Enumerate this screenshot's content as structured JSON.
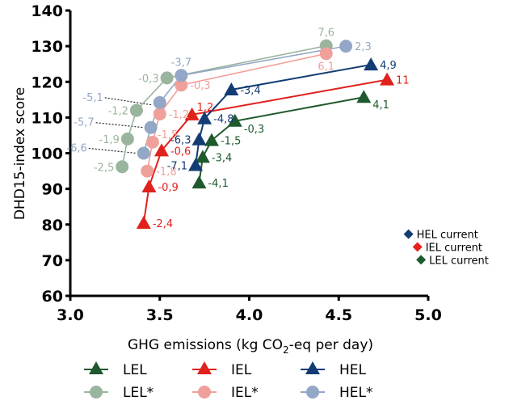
{
  "chart_data": {
    "type": "line",
    "title": "",
    "xlabel": "GHG emissions (kg CO",
    "xlabel_sub": "2",
    "xlabel_rest": "-eq per day)",
    "ylabel": "DHD15-index score",
    "xlim": [
      3.0,
      5.0
    ],
    "ylim": [
      60,
      140
    ],
    "xticks": [
      "3.0",
      "3.5",
      "4.0",
      "4.5",
      "5.0"
    ],
    "yticks": [
      "60",
      "70",
      "80",
      "90",
      "100",
      "110",
      "120",
      "130",
      "140"
    ],
    "grid": false,
    "legend_placement": "bottom",
    "series": [
      {
        "name": "LEL",
        "marker": "triangle",
        "color": "#1f5a2e",
        "points": [
          {
            "x": 3.72,
            "y": 91.7,
            "label": "-4,1",
            "pos": "right"
          },
          {
            "x": 3.74,
            "y": 98.9,
            "label": "-3,4",
            "pos": "right"
          },
          {
            "x": 3.79,
            "y": 103.6,
            "label": "-1,5",
            "pos": "right"
          },
          {
            "x": 3.92,
            "y": 109.0,
            "label": "-0,3",
            "pos": "rightbelow"
          },
          {
            "x": 4.64,
            "y": 115.7,
            "label": "4,1",
            "pos": "rightbelow"
          }
        ]
      },
      {
        "name": "IEL",
        "marker": "triangle",
        "color": "#e0211c",
        "points": [
          {
            "x": 3.41,
            "y": 80.4,
            "label": "-2,4",
            "pos": "right"
          },
          {
            "x": 3.44,
            "y": 90.6,
            "label": "-0,9",
            "pos": "right"
          },
          {
            "x": 3.51,
            "y": 100.7,
            "label": "-0,6",
            "pos": "right"
          },
          {
            "x": 3.68,
            "y": 110.8,
            "label": "1,2",
            "pos": "rightabove"
          },
          {
            "x": 4.77,
            "y": 120.6,
            "label": "11",
            "pos": "right"
          }
        ]
      },
      {
        "name": "HEL",
        "marker": "triangle",
        "color": "#123c73",
        "points": [
          {
            "x": 3.7,
            "y": 96.6,
            "label": "-7,1",
            "pos": "left"
          },
          {
            "x": 3.72,
            "y": 103.8,
            "label": "-6,3",
            "pos": "left"
          },
          {
            "x": 3.75,
            "y": 109.7,
            "label": "-4,8",
            "pos": "right"
          },
          {
            "x": 3.9,
            "y": 117.8,
            "label": "-3,4",
            "pos": "right"
          },
          {
            "x": 4.68,
            "y": 124.8,
            "label": "4,9",
            "pos": "right"
          }
        ]
      },
      {
        "name": "LEL*",
        "marker": "circle",
        "color": "#9ab59e",
        "points": [
          {
            "x": 3.29,
            "y": 96.2,
            "label": "-2,5",
            "pos": "left"
          },
          {
            "x": 3.32,
            "y": 104.0,
            "label": "-1,9",
            "pos": "left"
          },
          {
            "x": 3.37,
            "y": 112.0,
            "label": "-1,2",
            "pos": "left"
          },
          {
            "x": 3.54,
            "y": 121.1,
            "label": "-0,3",
            "pos": "left"
          },
          {
            "x": 4.43,
            "y": 130.1,
            "label": "7,6",
            "pos": "above"
          }
        ]
      },
      {
        "name": "IEL*",
        "marker": "circle",
        "color": "#f0a09a",
        "points": [
          {
            "x": 3.43,
            "y": 95.0,
            "label": "-1,8",
            "pos": "right"
          },
          {
            "x": 3.46,
            "y": 103.1,
            "label": "-1,5",
            "pos": "rightabove"
          },
          {
            "x": 3.5,
            "y": 111.0,
            "label": "-1,2",
            "pos": "right"
          },
          {
            "x": 3.62,
            "y": 119.1,
            "label": "-0,3",
            "pos": "right"
          },
          {
            "x": 4.43,
            "y": 127.9,
            "label": "6,1",
            "pos": "below"
          }
        ]
      },
      {
        "name": "HEL*",
        "marker": "circle",
        "color": "#93a7c6",
        "points": [
          {
            "x": 3.41,
            "y": 100.0,
            "label": "-6,6",
            "pos": "leader"
          },
          {
            "x": 3.45,
            "y": 107.2,
            "label": "-5,7",
            "pos": "leader"
          },
          {
            "x": 3.5,
            "y": 114.2,
            "label": "-5,1",
            "pos": "leader"
          },
          {
            "x": 3.62,
            "y": 121.8,
            "label": "-3,7",
            "pos": "above"
          },
          {
            "x": 4.54,
            "y": 130.0,
            "label": "2,3",
            "pos": "right"
          }
        ]
      }
    ],
    "current_markers": [
      {
        "name": "HEL current",
        "color": "#123c73",
        "x": 4.89,
        "y": 77.3
      },
      {
        "name": "IEL current",
        "color": "#e8221a",
        "x": 4.94,
        "y": 73.7
      },
      {
        "name": "LEL current",
        "color": "#1f5a2e",
        "x": 4.96,
        "y": 70.1
      }
    ]
  }
}
